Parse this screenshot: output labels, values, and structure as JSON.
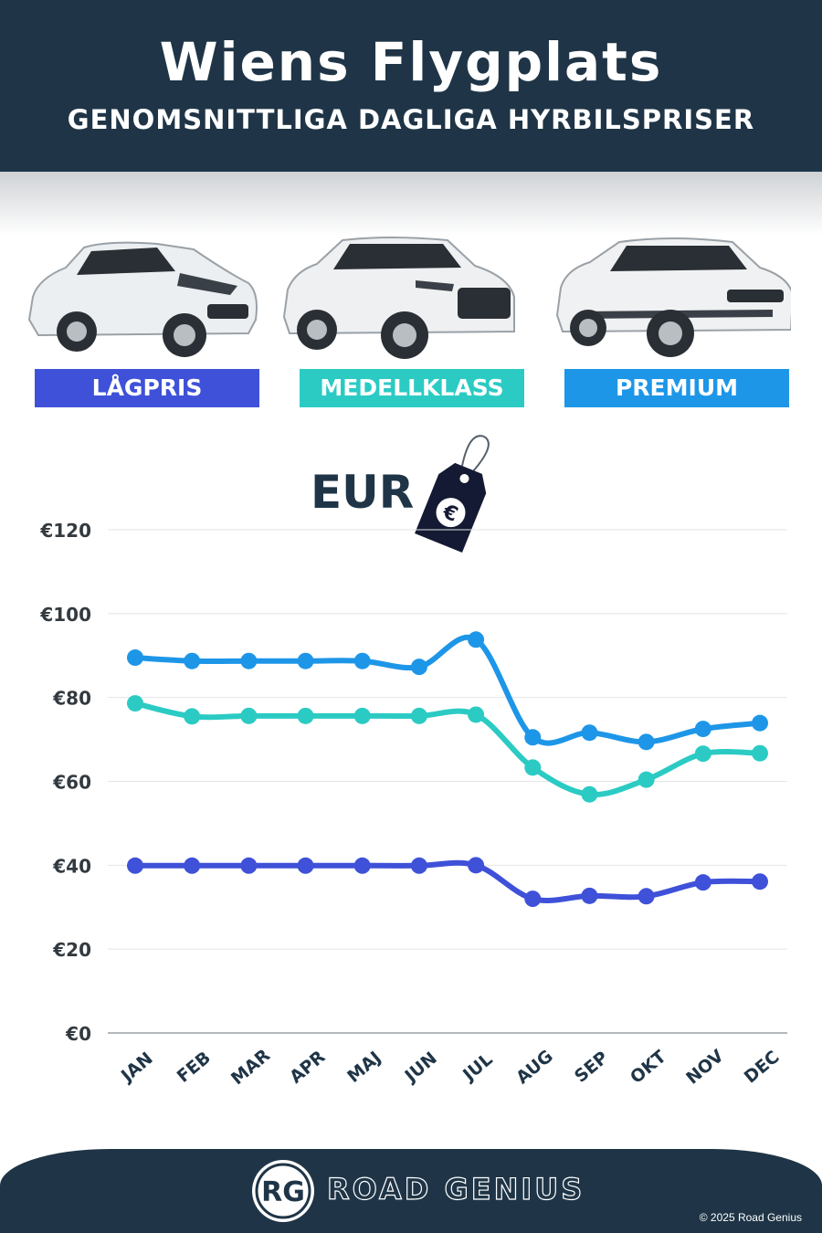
{
  "header": {
    "title": "Wiens Flygplats",
    "subtitle": "GENOMSNITTLIGA DAGLIGA HYRBILSPRISER"
  },
  "categories": [
    {
      "label": "LÅGPRIS",
      "color": "#3f51d8"
    },
    {
      "label": "MEDELLKLASS",
      "color": "#2bcbc4"
    },
    {
      "label": "PREMIUM",
      "color": "#1e96e8"
    }
  ],
  "currency_label": "EUR",
  "tag_icon": "euro-price-tag-icon",
  "chart_data": {
    "type": "line",
    "x": [
      "JAN",
      "FEB",
      "MAR",
      "APR",
      "MAJ",
      "JUN",
      "JUL",
      "AUG",
      "SEP",
      "OKT",
      "NOV",
      "DEC"
    ],
    "yticks": [
      "€0",
      "€20",
      "€40",
      "€60",
      "€80",
      "€100",
      "€120"
    ],
    "ylim": [
      0,
      120
    ],
    "grid": true,
    "series": [
      {
        "name": "PREMIUM",
        "color": "#1e96e8",
        "values": [
          89.5,
          88.7,
          88.7,
          88.7,
          88.7,
          87.3,
          93.8,
          70.5,
          71.6,
          69.4,
          72.5,
          73.9
        ]
      },
      {
        "name": "MEDELLKLASS",
        "color": "#2bcbc4",
        "values": [
          78.6,
          75.5,
          75.6,
          75.6,
          75.6,
          75.6,
          75.9,
          63.3,
          56.9,
          60.4,
          66.6,
          66.7
        ]
      },
      {
        "name": "LÅGPRIS",
        "color": "#3f51d8",
        "values": [
          39.9,
          39.9,
          39.9,
          39.9,
          39.9,
          39.9,
          40.0,
          32.0,
          32.7,
          32.6,
          35.9,
          36.1
        ]
      }
    ]
  },
  "footer": {
    "logo_text": "RG",
    "brand": "ROAD GENIUS",
    "copyright": "© 2025 Road Genius"
  }
}
